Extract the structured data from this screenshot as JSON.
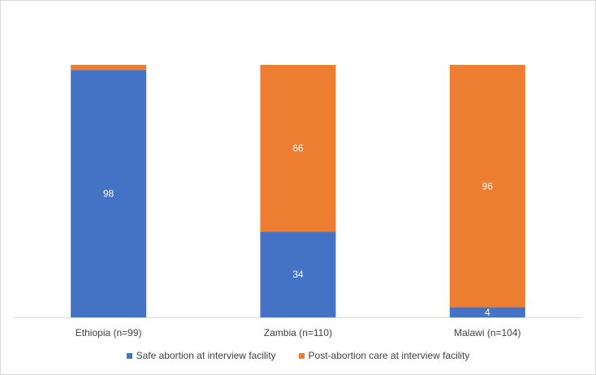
{
  "chart_data": {
    "type": "stacked-bar",
    "categories": [
      "Ethiopia (n=99)",
      "Zambia (n=110)",
      "Malawi (n=104)"
    ],
    "series": [
      {
        "name": "Safe abortion at interview facility",
        "color": "#4472c4",
        "values": [
          98,
          34,
          4
        ]
      },
      {
        "name": "Post-abortion care at interview facility",
        "color": "#ed7d31",
        "values": [
          2,
          66,
          96
        ]
      }
    ],
    "data_labels": {
      "series_0": [
        "98",
        "34",
        "4"
      ],
      "series_1": [
        "",
        "66",
        "96"
      ]
    },
    "ylim": [
      0,
      100
    ],
    "title": "",
    "xlabel": "",
    "ylabel": "",
    "legend_position": "bottom"
  }
}
